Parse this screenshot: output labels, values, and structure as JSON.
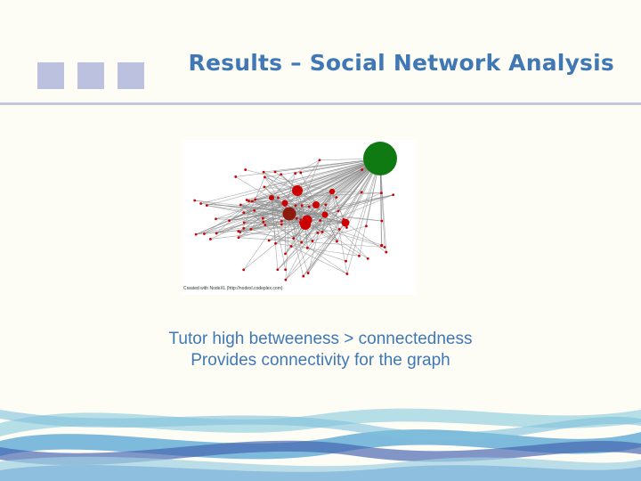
{
  "slide": {
    "title": "Results – Social Network Analysis",
    "graph_credit": "Created with NodeXL (http://nodexl.codeplex.com)",
    "caption_line1": "Tutor high betweeness > connectedness",
    "caption_line2": "Provides connectivity for the graph"
  },
  "colors": {
    "title": "#3f78b4",
    "deco_squares": "#bcc1df",
    "rule": "#c3c6dc",
    "tutor_node": "#0f7a12",
    "student_node": "#cc0000",
    "edge": "#8c8c8c"
  }
}
